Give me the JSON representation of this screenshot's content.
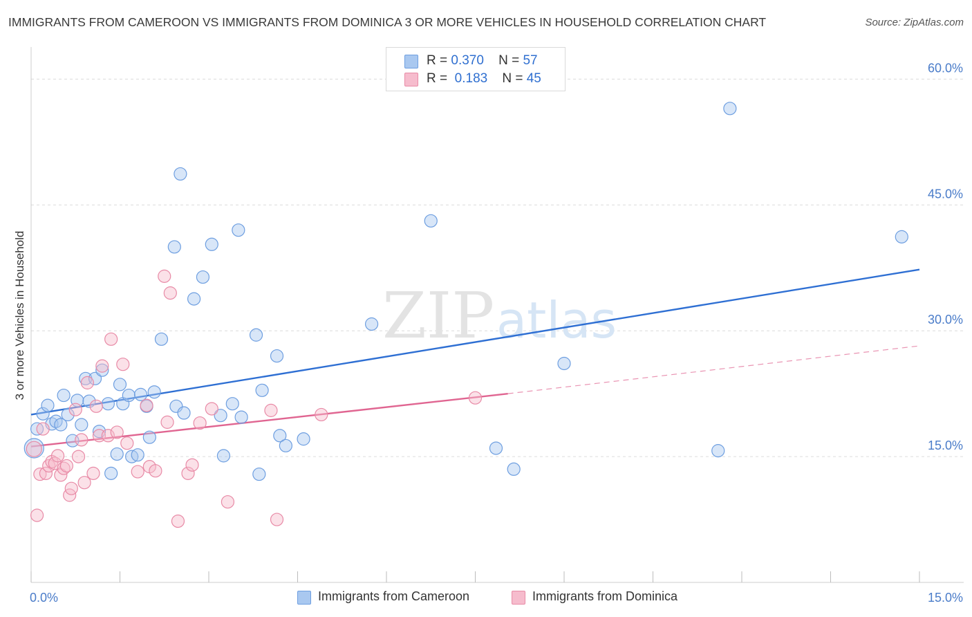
{
  "title": "IMMIGRANTS FROM CAMEROON VS IMMIGRANTS FROM DOMINICA 3 OR MORE VEHICLES IN HOUSEHOLD CORRELATION CHART",
  "source": "Source: ZipAtlas.com",
  "watermark": {
    "zip": "ZIP",
    "atlas": "atlas"
  },
  "legend": {
    "rows": [
      {
        "r_label": "R =",
        "r_value": "0.370",
        "n_label": "N =",
        "n_value": "57",
        "color": "#a9c8f0",
        "border": "#6d9ee0"
      },
      {
        "r_label": "R =",
        "r_value": "0.183",
        "n_label": "N =",
        "n_value": "45",
        "color": "#f6bccd",
        "border": "#e88aa6"
      }
    ]
  },
  "bottom_legend": [
    {
      "label": "Immigrants from Cameroon",
      "color": "#a9c8f0",
      "border": "#6d9ee0"
    },
    {
      "label": "Immigrants from Dominica",
      "color": "#f6bccd",
      "border": "#e88aa6"
    }
  ],
  "chart_data": {
    "type": "scatter",
    "title": "IMMIGRANTS FROM CAMEROON VS IMMIGRANTS FROM DOMINICA 3 OR MORE VEHICLES IN HOUSEHOLD CORRELATION CHART",
    "xlabel": "",
    "ylabel": "3 or more Vehicles in Household",
    "xlim": [
      0,
      15
    ],
    "ylim": [
      0,
      63
    ],
    "x_tick_labels": [
      {
        "value": 0,
        "label": "0.0%"
      },
      {
        "value": 15,
        "label": "15.0%"
      }
    ],
    "y_tick_labels": [
      {
        "value": 15,
        "label": "15.0%"
      },
      {
        "value": 30,
        "label": "30.0%"
      },
      {
        "value": 45,
        "label": "45.0%"
      },
      {
        "value": 60,
        "label": "60.0%"
      }
    ],
    "grid": true,
    "legend_position": "top-center",
    "series": [
      {
        "name": "Immigrants from Cameroon",
        "color": "#6d9ee0",
        "fill": "#a9c8f0",
        "trend": {
          "x": [
            0,
            15
          ],
          "y": [
            20.0,
            37.3
          ]
        },
        "points": [
          [
            0.05,
            16.0,
            14
          ],
          [
            0.1,
            18.3,
            9
          ],
          [
            0.2,
            20.1,
            9
          ],
          [
            0.28,
            21.1,
            9
          ],
          [
            0.35,
            18.9,
            9
          ],
          [
            0.42,
            19.2,
            9
          ],
          [
            0.5,
            18.8,
            9
          ],
          [
            0.55,
            22.3,
            9
          ],
          [
            0.62,
            20.0,
            9
          ],
          [
            0.7,
            16.9,
            9
          ],
          [
            0.78,
            21.7,
            9
          ],
          [
            0.85,
            18.8,
            9
          ],
          [
            0.92,
            24.3,
            9
          ],
          [
            0.98,
            21.6,
            9
          ],
          [
            1.08,
            24.3,
            9
          ],
          [
            1.15,
            18.0,
            9
          ],
          [
            1.2,
            25.3,
            9
          ],
          [
            1.3,
            21.3,
            9
          ],
          [
            1.35,
            13.0,
            9
          ],
          [
            1.45,
            15.3,
            9
          ],
          [
            1.5,
            23.6,
            9
          ],
          [
            1.55,
            21.3,
            9
          ],
          [
            1.65,
            22.3,
            9
          ],
          [
            1.7,
            15.0,
            9
          ],
          [
            1.8,
            15.2,
            9
          ],
          [
            1.85,
            22.4,
            9
          ],
          [
            1.95,
            21.0,
            9
          ],
          [
            2.0,
            17.3,
            9
          ],
          [
            2.08,
            22.7,
            9
          ],
          [
            2.2,
            29.0,
            9
          ],
          [
            2.42,
            40.0,
            9
          ],
          [
            2.45,
            21.0,
            9
          ],
          [
            2.52,
            48.7,
            9
          ],
          [
            2.58,
            20.2,
            9
          ],
          [
            2.75,
            33.8,
            9
          ],
          [
            2.9,
            36.4,
            9
          ],
          [
            3.05,
            40.3,
            9
          ],
          [
            3.2,
            19.9,
            9
          ],
          [
            3.25,
            15.1,
            9
          ],
          [
            3.4,
            21.3,
            9
          ],
          [
            3.5,
            42.0,
            9
          ],
          [
            3.55,
            19.7,
            9
          ],
          [
            3.8,
            29.5,
            9
          ],
          [
            3.85,
            12.9,
            9
          ],
          [
            3.9,
            22.9,
            9
          ],
          [
            4.15,
            27.0,
            9
          ],
          [
            4.2,
            17.5,
            9
          ],
          [
            4.3,
            16.3,
            9
          ],
          [
            4.6,
            17.1,
            9
          ],
          [
            5.75,
            30.8,
            9
          ],
          [
            6.75,
            43.1,
            9
          ],
          [
            7.85,
            16.0,
            9
          ],
          [
            8.15,
            13.5,
            9
          ],
          [
            9.0,
            26.1,
            9
          ],
          [
            11.6,
            15.7,
            9
          ],
          [
            11.8,
            56.5,
            9
          ],
          [
            14.7,
            41.2,
            9
          ]
        ]
      },
      {
        "name": "Immigrants from Dominica",
        "color": "#e88aa6",
        "fill": "#f6bccd",
        "trend": {
          "x": [
            0,
            8.05
          ],
          "y": [
            16.2,
            22.5
          ]
        },
        "trend_dashed": {
          "x": [
            8.05,
            15
          ],
          "y": [
            22.5,
            28.2
          ]
        },
        "points": [
          [
            0.05,
            15.9,
            11
          ],
          [
            0.1,
            8.0,
            9
          ],
          [
            0.15,
            12.9,
            9
          ],
          [
            0.2,
            18.3,
            9
          ],
          [
            0.25,
            13.0,
            9
          ],
          [
            0.3,
            13.9,
            9
          ],
          [
            0.35,
            14.4,
            9
          ],
          [
            0.4,
            14.2,
            9
          ],
          [
            0.45,
            15.1,
            9
          ],
          [
            0.5,
            12.8,
            9
          ],
          [
            0.55,
            13.6,
            9
          ],
          [
            0.6,
            13.9,
            9
          ],
          [
            0.65,
            10.4,
            9
          ],
          [
            0.68,
            11.2,
            9
          ],
          [
            0.75,
            20.6,
            9
          ],
          [
            0.8,
            15.0,
            9
          ],
          [
            0.85,
            17.0,
            9
          ],
          [
            0.9,
            11.9,
            9
          ],
          [
            0.95,
            23.8,
            9
          ],
          [
            1.05,
            13.0,
            9
          ],
          [
            1.1,
            21.0,
            9
          ],
          [
            1.15,
            17.5,
            9
          ],
          [
            1.2,
            25.8,
            9
          ],
          [
            1.3,
            17.5,
            9
          ],
          [
            1.35,
            29.0,
            9
          ],
          [
            1.45,
            17.9,
            9
          ],
          [
            1.55,
            26.0,
            9
          ],
          [
            1.62,
            16.6,
            9
          ],
          [
            1.8,
            13.2,
            9
          ],
          [
            1.95,
            21.1,
            9
          ],
          [
            2.0,
            13.8,
            9
          ],
          [
            2.1,
            13.3,
            9
          ],
          [
            2.25,
            36.5,
            9
          ],
          [
            2.3,
            19.1,
            9
          ],
          [
            2.35,
            34.5,
            9
          ],
          [
            2.48,
            7.3,
            9
          ],
          [
            2.65,
            13.0,
            9
          ],
          [
            2.72,
            14.0,
            9
          ],
          [
            2.85,
            19.0,
            9
          ],
          [
            3.05,
            20.7,
            9
          ],
          [
            3.32,
            9.6,
            9
          ],
          [
            4.05,
            20.5,
            9
          ],
          [
            4.15,
            7.5,
            9
          ],
          [
            4.9,
            20.0,
            9
          ],
          [
            7.5,
            22.0,
            9
          ]
        ]
      }
    ]
  }
}
